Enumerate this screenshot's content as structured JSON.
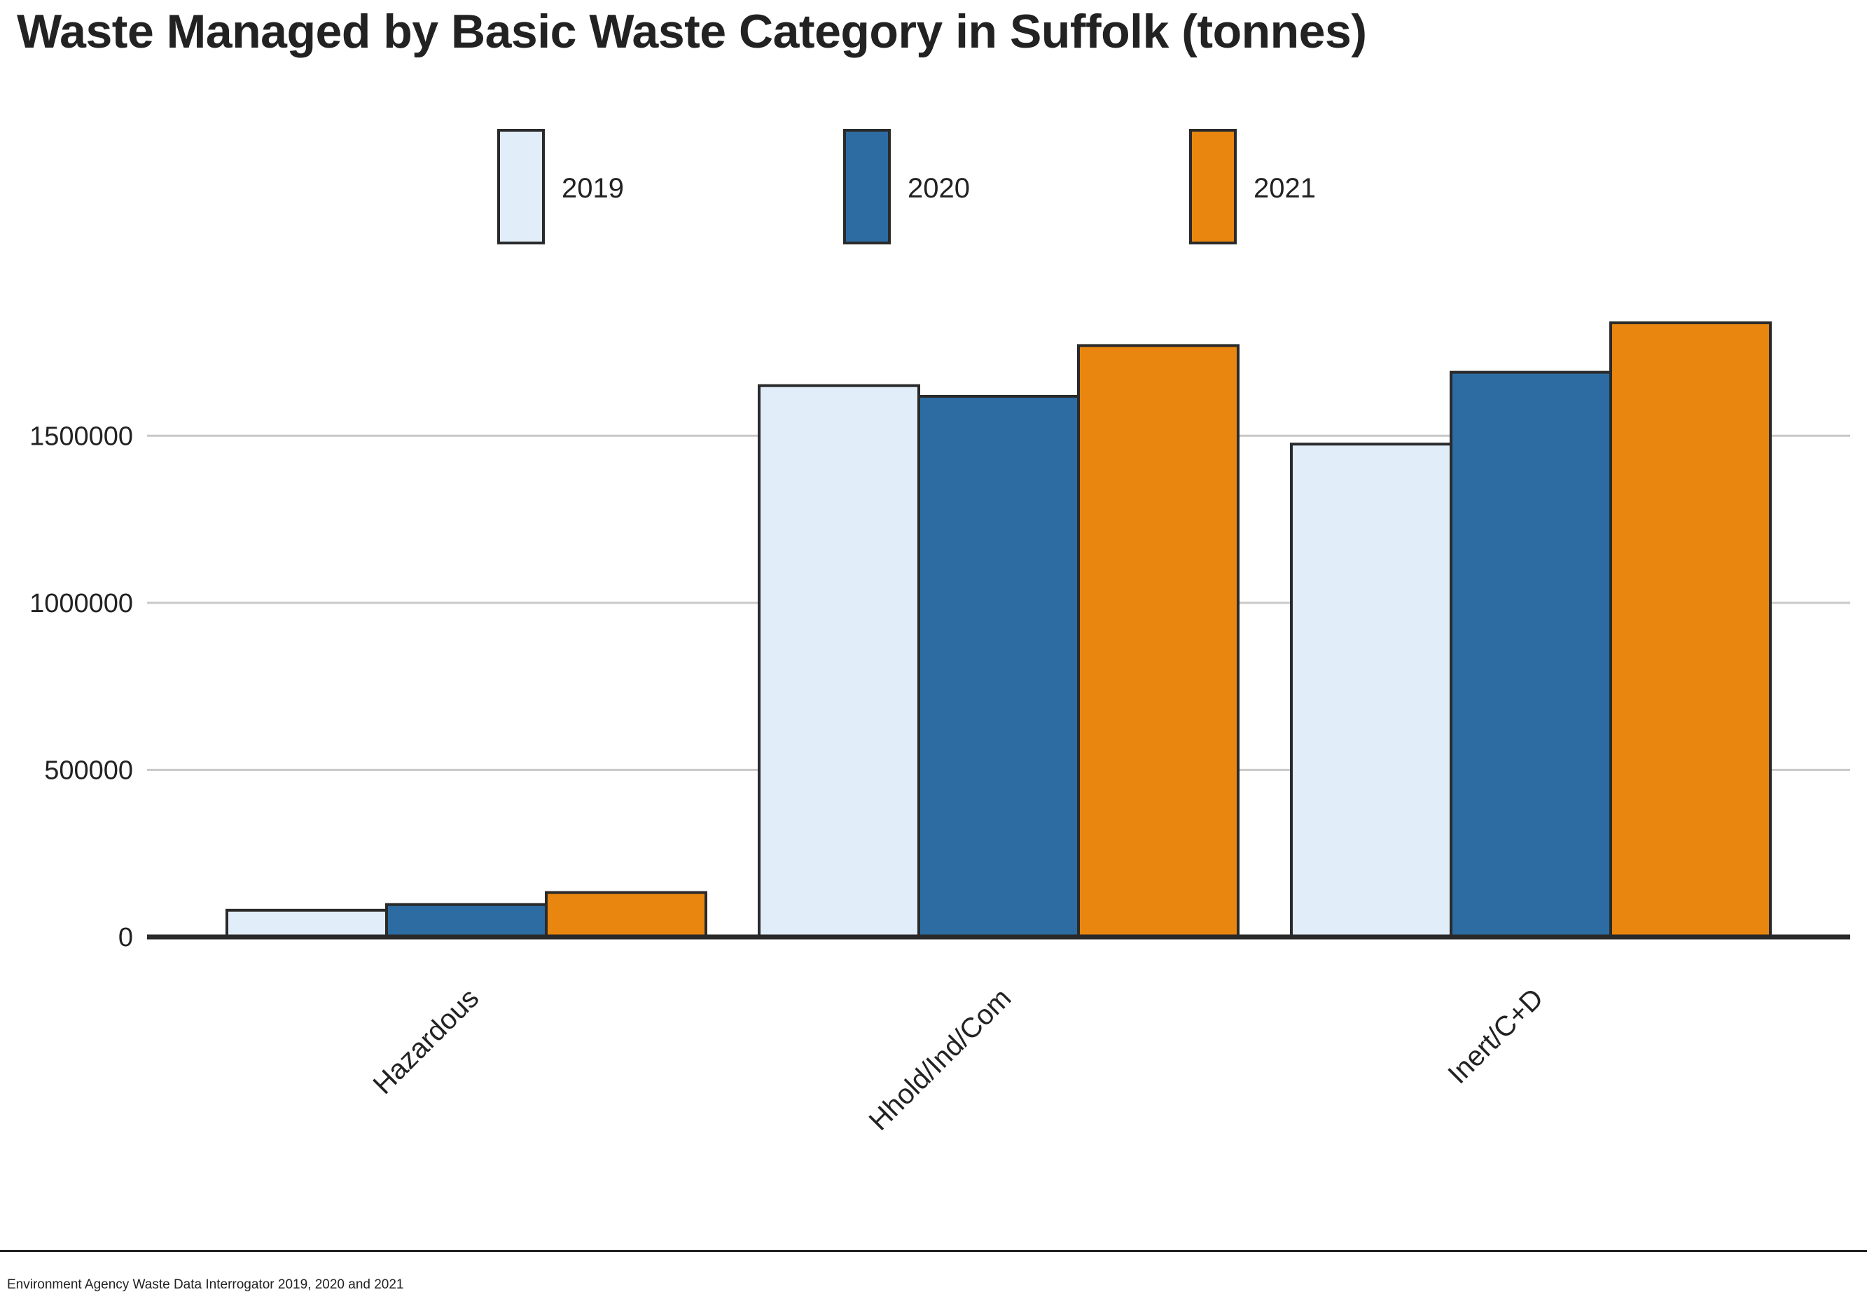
{
  "page": {
    "title": "Waste Managed by Basic Waste Category in Suffolk (tonnes)",
    "source": "Environment Agency Waste Data Interrogator 2019, 2020 and 2021"
  },
  "chart_data": {
    "type": "bar",
    "title": "Waste Managed by Basic Waste Category in Suffolk (tonnes)",
    "xlabel": "",
    "ylabel": "",
    "categories": [
      "Hazardous",
      "Hhold/Ind/Com",
      "Inert/C+D"
    ],
    "series": [
      {
        "name": "2019",
        "color": "#e1edf8",
        "values": [
          80000,
          1650000,
          1475000
        ]
      },
      {
        "name": "2020",
        "color": "#2d6ca2",
        "values": [
          97000,
          1618000,
          1690000
        ]
      },
      {
        "name": "2021",
        "color": "#e8860f",
        "values": [
          133000,
          1770000,
          1838000
        ]
      }
    ],
    "yticks": [
      "0",
      "500000",
      "1000000",
      "1500000"
    ],
    "ylim": [
      0,
      1838000
    ],
    "grid": true,
    "legend_position": "top"
  }
}
